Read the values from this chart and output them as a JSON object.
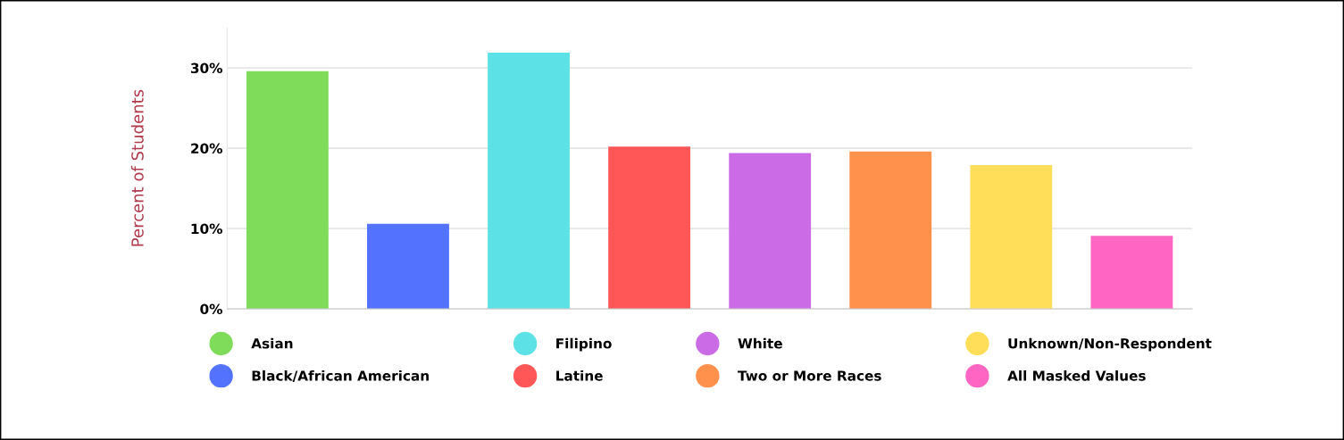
{
  "chart_data": {
    "type": "bar",
    "ylabel": "Percent of Students",
    "categories": [
      null,
      null,
      null,
      null,
      null,
      null,
      null,
      null
    ],
    "series": [
      {
        "name": "Asian",
        "color": "#7fdb5a",
        "values": [
          29.6,
          null,
          null,
          null,
          null,
          null,
          null,
          null
        ]
      },
      {
        "name": "Black/African American",
        "color": "#5373ff",
        "values": [
          null,
          10.6,
          null,
          null,
          null,
          null,
          null,
          null
        ]
      },
      {
        "name": "Filipino",
        "color": "#5ce1e6",
        "values": [
          null,
          null,
          31.9,
          null,
          null,
          null,
          null,
          null
        ]
      },
      {
        "name": "Latine",
        "color": "#ff5757",
        "values": [
          null,
          null,
          null,
          20.2,
          null,
          null,
          null,
          null
        ]
      },
      {
        "name": "White",
        "color": "#cb6ce6",
        "values": [
          null,
          null,
          null,
          null,
          19.4,
          null,
          null,
          null
        ]
      },
      {
        "name": "Two or More Races",
        "color": "#ff914d",
        "values": [
          null,
          null,
          null,
          null,
          null,
          19.6,
          null,
          null
        ]
      },
      {
        "name": "Unknown/Non-Respondent",
        "color": "#ffde59",
        "values": [
          null,
          null,
          null,
          null,
          null,
          null,
          17.9,
          null
        ]
      },
      {
        "name": "All Masked Values",
        "color": "#ff66c4",
        "values": [
          null,
          null,
          null,
          null,
          null,
          null,
          null,
          9.1
        ]
      }
    ],
    "yticks": [
      {
        "value": 0,
        "label": "0%"
      },
      {
        "value": 10,
        "label": "10%"
      },
      {
        "value": 20,
        "label": "20%"
      },
      {
        "value": 30,
        "label": "30%"
      }
    ],
    "ylim": [
      0,
      35
    ],
    "tick_labels": "y",
    "grid": "y",
    "legend": "bottom"
  }
}
